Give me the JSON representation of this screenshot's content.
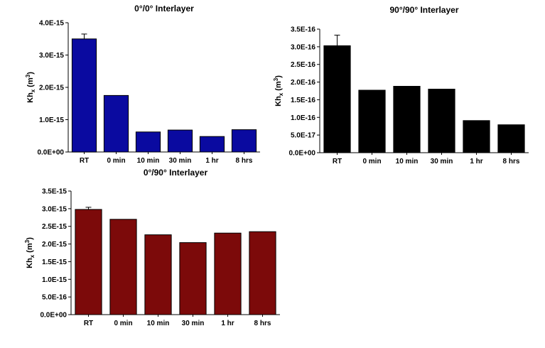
{
  "chart_data": [
    {
      "type": "bar",
      "title": "0°/0° Interlayer",
      "ylabel": "Khx (m3)",
      "categories": [
        "RT",
        "0 min",
        "10 min",
        "30 min",
        "1 hr",
        "8 hrs"
      ],
      "values": [
        3.5e-15,
        1.75e-15,
        6.2e-16,
        6.8e-16,
        4.8e-16,
        6.9e-16
      ],
      "errors": [
        1.5e-16,
        0,
        0,
        0,
        0,
        0
      ],
      "ylim": [
        0,
        4e-15
      ],
      "yticks": [
        0,
        1e-15,
        2e-15,
        3e-15,
        4e-15
      ],
      "ytick_labels": [
        "0.0E+00",
        "1.0E-15",
        "2.0E-15",
        "3.0E-15",
        "4.0E-15"
      ],
      "color": "#0a0aa0",
      "grid": false
    },
    {
      "type": "bar",
      "title": "90°/90° Interlayer",
      "ylabel": "Khx (m3)",
      "categories": [
        "RT",
        "0 min",
        "10 min",
        "30 min",
        "1 hr",
        "8 hrs"
      ],
      "values": [
        3.03e-16,
        1.77e-16,
        1.88e-16,
        1.8e-16,
        9.1e-17,
        7.9e-17
      ],
      "errors": [
        3e-17,
        0,
        0,
        0,
        0,
        0
      ],
      "ylim": [
        0,
        3.5e-16
      ],
      "yticks": [
        0,
        5e-17,
        1e-16,
        1.5e-16,
        2e-16,
        2.5e-16,
        3e-16,
        3.5e-16
      ],
      "ytick_labels": [
        "0.0E+00",
        "5.0E-17",
        "1.0E-16",
        "1.5E-16",
        "2.0E-16",
        "2.5E-16",
        "3.0E-16",
        "3.5E-16"
      ],
      "color": "#000000",
      "grid": false
    },
    {
      "type": "bar",
      "title": "0°/90° Interlayer",
      "ylabel": "Khx (m3)",
      "categories": [
        "RT",
        "0 min",
        "10 min",
        "30 min",
        "1 hr",
        "8 hrs"
      ],
      "values": [
        2.98e-15,
        2.7e-15,
        2.26e-15,
        2.04e-15,
        2.31e-15,
        2.35e-15
      ],
      "errors": [
        6e-17,
        0,
        0,
        0,
        0,
        0
      ],
      "ylim": [
        0,
        3.5e-15
      ],
      "yticks": [
        0,
        5e-16,
        1e-15,
        1.5e-15,
        2e-15,
        2.5e-15,
        3e-15,
        3.5e-15
      ],
      "ytick_labels": [
        "0.0E+00",
        "5.0E-16",
        "1.0E-15",
        "1.5E-15",
        "2.0E-15",
        "2.5E-15",
        "3.0E-15",
        "3.5E-15"
      ],
      "color": "#7c0a0a",
      "grid": false
    }
  ]
}
